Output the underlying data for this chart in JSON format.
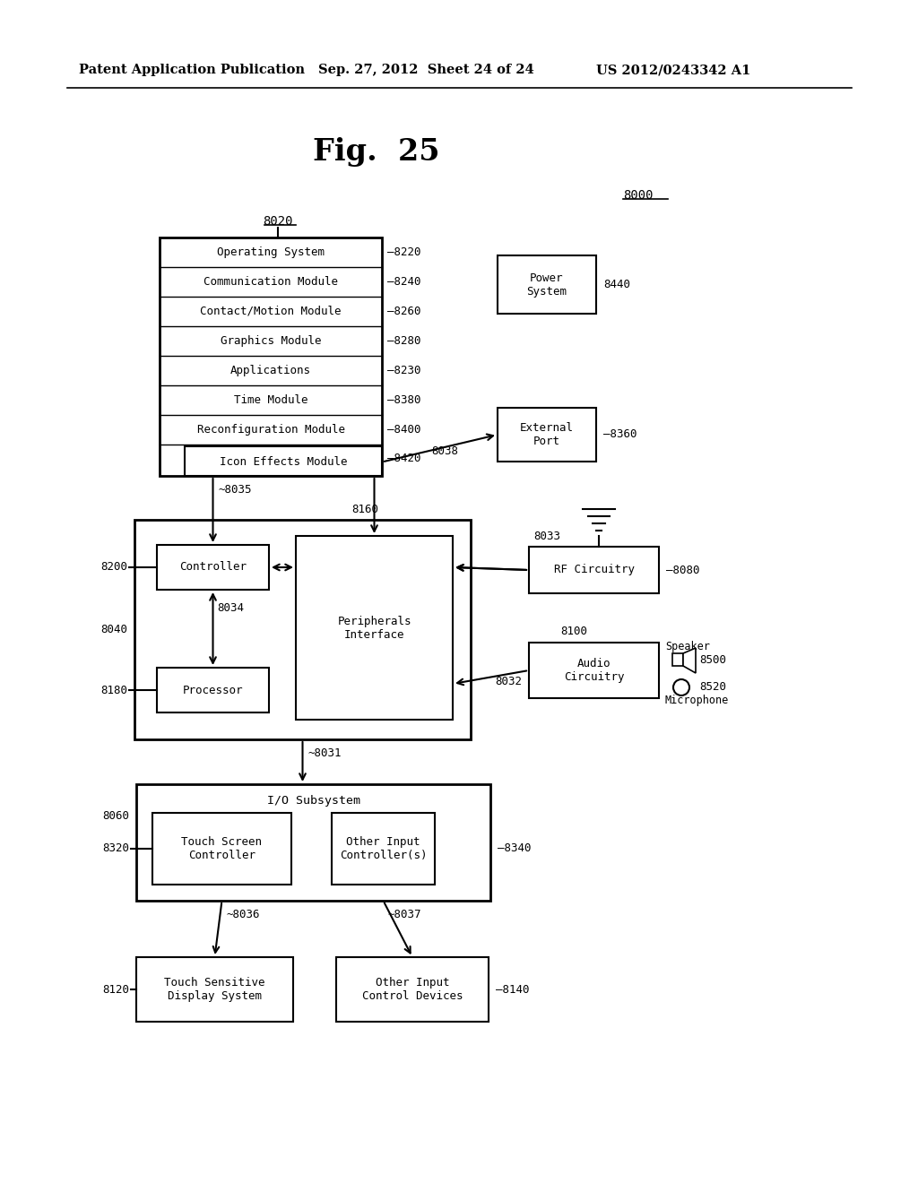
{
  "title": "Fig.  25",
  "header_left": "Patent Application Publication",
  "header_mid": "Sep. 27, 2012  Sheet 24 of 24",
  "header_right": "US 2012/0243342 A1",
  "bg_color": "#ffffff",
  "text_color": "#000000",
  "label_8000": "8000",
  "label_8020": "8020",
  "modules": [
    "Operating System",
    "Communication Module",
    "Contact/Motion Module",
    "Graphics Module",
    "Applications",
    "Time Module",
    "Reconfiguration Module"
  ],
  "module_labels": [
    "8220",
    "8240",
    "8260",
    "8280",
    "8230",
    "8380",
    "8400"
  ],
  "icon_effects": "Icon Effects Module",
  "icon_effects_label": "8420",
  "label_8035": "8035",
  "label_8038": "8038",
  "label_8160": "8160",
  "label_8033": "8033",
  "label_8032": "8032",
  "label_8031": "8031",
  "label_8034": "8034",
  "label_8200": "8200",
  "label_8040": "8040",
  "label_8180": "8180",
  "label_8060": "8060",
  "label_8320": "8320",
  "label_8340": "8340",
  "label_8120": "8120",
  "label_8140": "8140",
  "controller_text": "Controller",
  "processor_text": "Processor",
  "peripherals_text": "Peripherals\nInterface",
  "rf_text": "RF Circuitry",
  "rf_label": "8080",
  "audio_text": "Audio\nCircuitry",
  "audio_label": "8100",
  "external_port_text": "External\nPort",
  "external_port_label": "8360",
  "power_system_text": "Power\nSystem",
  "power_system_label": "8440",
  "io_subsystem_text": "I/O Subsystem",
  "touch_screen_text": "Touch Screen\nController",
  "other_input_ctrl_text": "Other Input\nController(s)",
  "touch_display_text": "Touch Sensitive\nDisplay System",
  "other_input_dev_text": "Other Input\nControl Devices",
  "label_8036": "8036",
  "label_8037": "8037",
  "speaker_text": "Speaker",
  "speaker_label": "8500",
  "microphone_text": "Microphone",
  "microphone_label": "8520"
}
